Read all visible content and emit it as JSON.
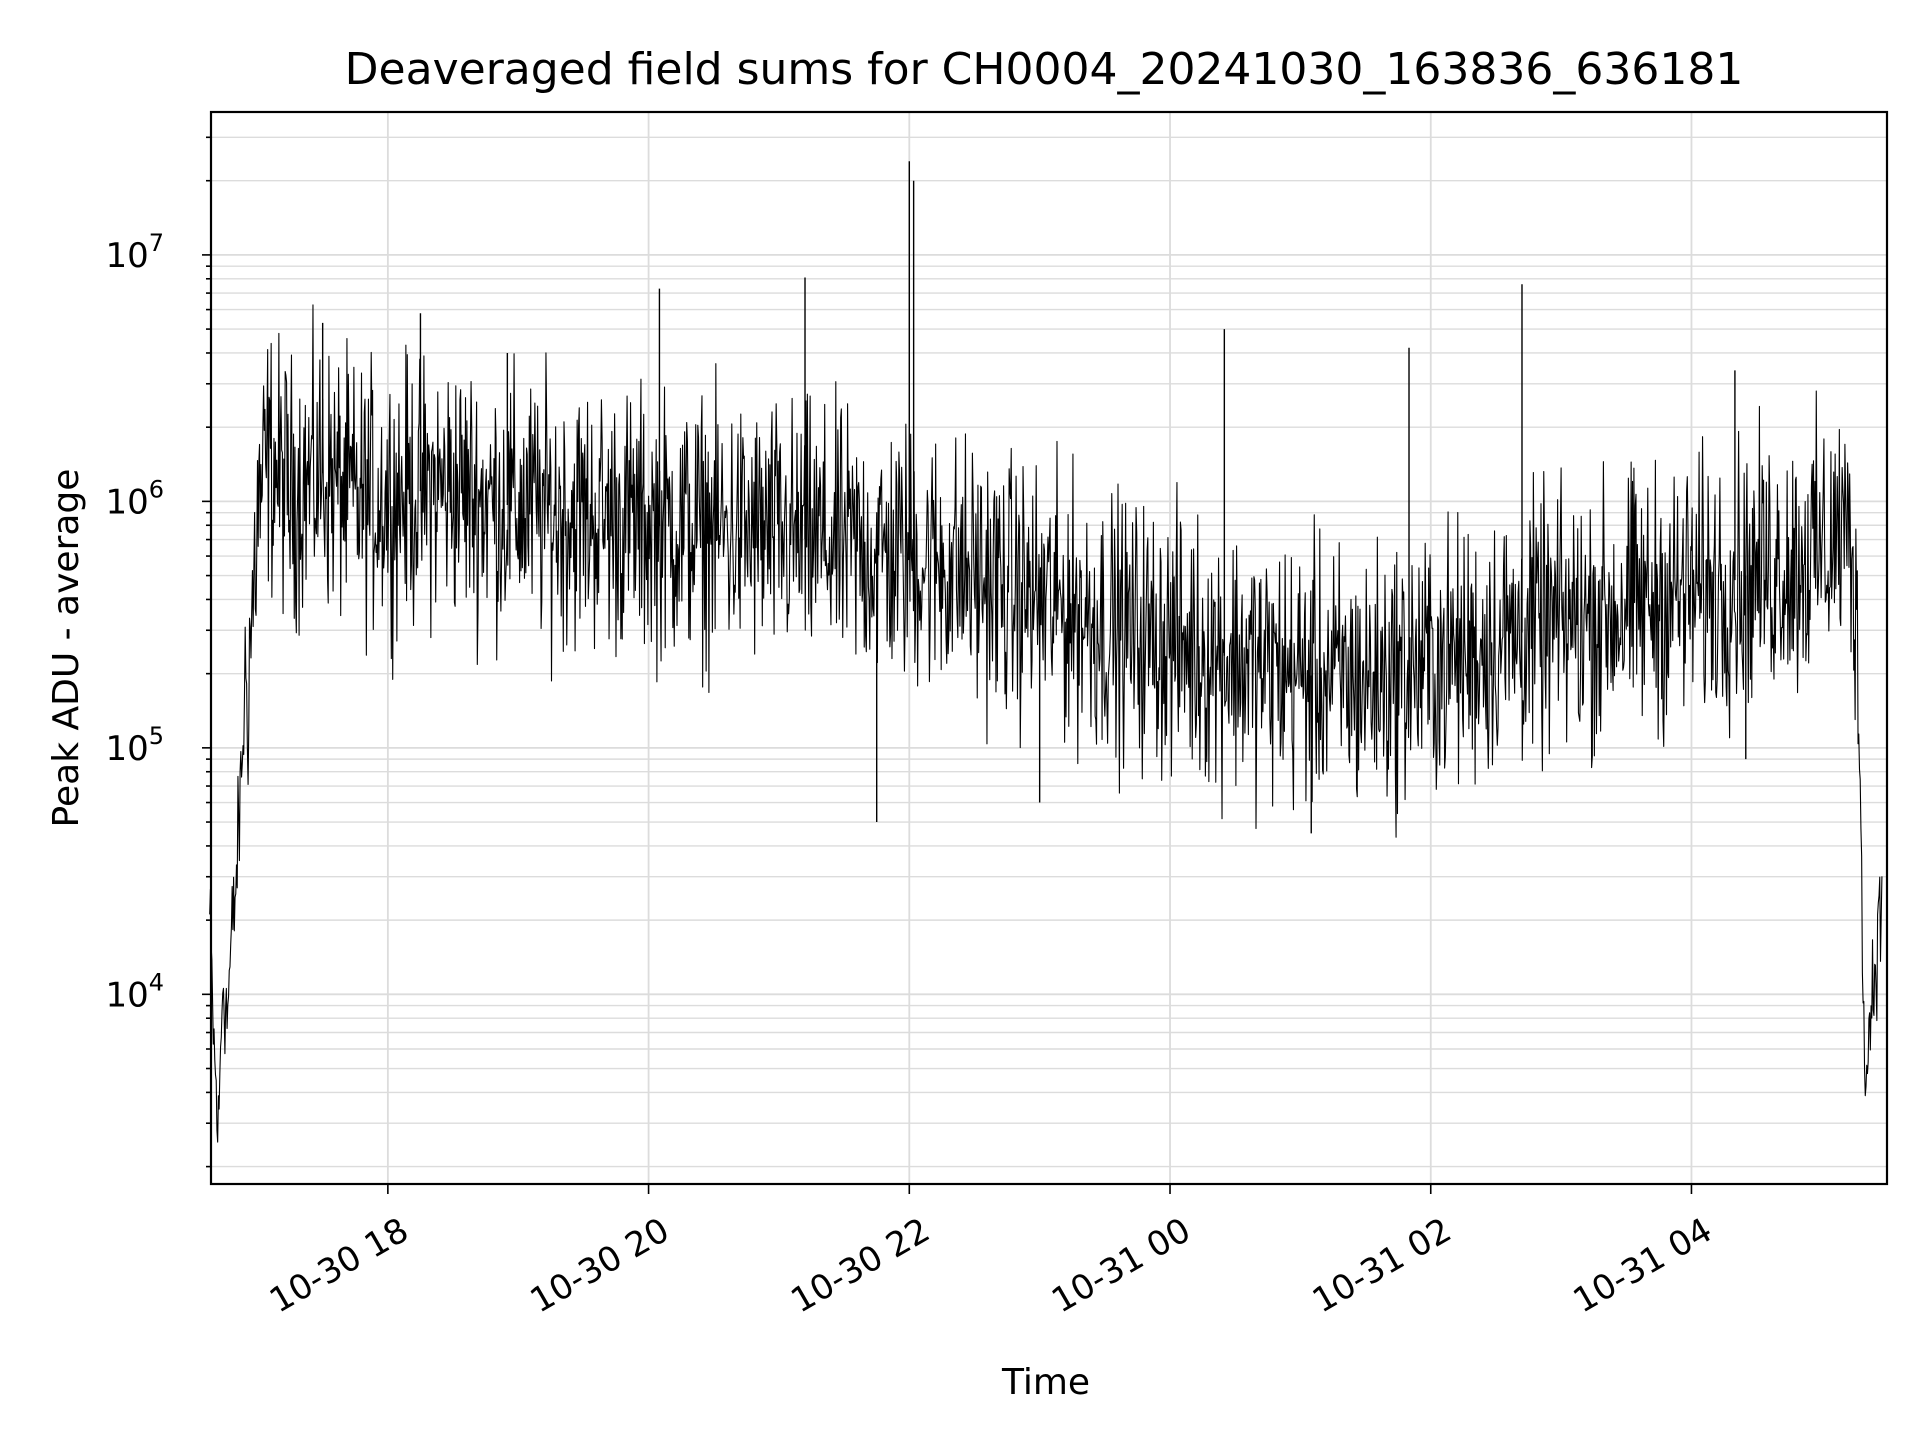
{
  "chart_data": {
    "type": "line",
    "title": "Deaveraged field sums for CH0004_20241030_163836_636181",
    "xlabel": "Time",
    "ylabel": "Peak ADU - average",
    "yscale": "log",
    "ylim": [
      1700,
      38000000
    ],
    "xlim": [
      "2024-10-30 16:38:36",
      "2024-10-31 05:30:00"
    ],
    "grid": true,
    "grid_minor_y": true,
    "legend": "none",
    "x_tick_labels": [
      "10-30 18",
      "10-30 20",
      "10-30 22",
      "10-31 00",
      "10-31 02",
      "10-31 04"
    ],
    "x_tick_values": [
      "2024-10-30 18:00",
      "2024-10-30 20:00",
      "2024-10-30 22:00",
      "2024-10-31 00:00",
      "2024-10-31 02:00",
      "2024-10-31 04:00"
    ],
    "y_tick_labels": [
      {
        "base": "10",
        "exp": "4",
        "value": 10000
      },
      {
        "base": "10",
        "exp": "5",
        "value": 100000
      },
      {
        "base": "10",
        "exp": "6",
        "value": 1000000
      },
      {
        "base": "10",
        "exp": "7",
        "value": 10000000
      }
    ],
    "series": [
      {
        "color": "#000000",
        "points": [
          [
            "2024-10-30 16:38",
            20000
          ],
          [
            "2024-10-30 16:40",
            6000
          ],
          [
            "2024-10-30 16:42",
            2600
          ],
          [
            "2024-10-30 16:44",
            12000
          ],
          [
            "2024-10-30 16:46",
            8000
          ],
          [
            "2024-10-30 16:48",
            16000
          ],
          [
            "2024-10-30 16:50",
            27000
          ],
          [
            "2024-10-30 16:52",
            60000
          ],
          [
            "2024-10-30 16:54",
            150000
          ],
          [
            "2024-10-30 16:56",
            220000
          ],
          [
            "2024-10-30 16:58",
            400000
          ],
          [
            "2024-10-30 17:00",
            900000
          ],
          [
            "2024-10-30 17:05",
            1500000
          ],
          [
            "2024-10-30 17:15",
            1100000
          ],
          [
            "2024-10-30 17:30",
            1300000
          ],
          [
            "2024-10-30 17:45",
            1000000
          ],
          [
            "2024-10-30 18:00",
            1050000
          ],
          [
            "2024-10-30 18:15",
            1100000
          ],
          [
            "2024-10-30 18:30",
            1150000
          ],
          [
            "2024-10-30 18:45",
            1000000
          ],
          [
            "2024-10-30 19:00",
            950000
          ],
          [
            "2024-10-30 19:15",
            900000
          ],
          [
            "2024-10-30 19:30",
            880000
          ],
          [
            "2024-10-30 19:45",
            850000
          ],
          [
            "2024-10-30 20:00",
            800000
          ],
          [
            "2024-10-30 20:15",
            780000
          ],
          [
            "2024-10-30 20:30",
            760000
          ],
          [
            "2024-10-30 20:45",
            740000
          ],
          [
            "2024-10-30 21:00",
            720000
          ],
          [
            "2024-10-30 21:15",
            700000
          ],
          [
            "2024-10-30 21:30",
            660000
          ],
          [
            "2024-10-30 21:45",
            620000
          ],
          [
            "2024-10-30 22:00",
            600000
          ],
          [
            "2024-10-30 22:15",
            560000
          ],
          [
            "2024-10-30 22:30",
            500000
          ],
          [
            "2024-10-30 22:45",
            440000
          ],
          [
            "2024-10-30 23:00",
            400000
          ],
          [
            "2024-10-30 23:15",
            360000
          ],
          [
            "2024-10-30 23:30",
            320000
          ],
          [
            "2024-10-30 23:45",
            290000
          ],
          [
            "2024-10-31 00:00",
            270000
          ],
          [
            "2024-10-31 00:15",
            250000
          ],
          [
            "2024-10-31 00:30",
            230000
          ],
          [
            "2024-10-31 00:45",
            210000
          ],
          [
            "2024-10-31 01:00",
            200000
          ],
          [
            "2024-10-31 01:15",
            190000
          ],
          [
            "2024-10-31 01:30",
            185000
          ],
          [
            "2024-10-31 01:45",
            200000
          ],
          [
            "2024-10-31 02:00",
            220000
          ],
          [
            "2024-10-31 02:15",
            240000
          ],
          [
            "2024-10-31 02:30",
            270000
          ],
          [
            "2024-10-31 02:45",
            300000
          ],
          [
            "2024-10-31 03:00",
            320000
          ],
          [
            "2024-10-31 03:15",
            340000
          ],
          [
            "2024-10-31 03:30",
            370000
          ],
          [
            "2024-10-31 03:45",
            400000
          ],
          [
            "2024-10-31 04:00",
            430000
          ],
          [
            "2024-10-31 04:15",
            460000
          ],
          [
            "2024-10-31 04:30",
            520000
          ],
          [
            "2024-10-31 04:45",
            560000
          ],
          [
            "2024-10-31 05:00",
            620000
          ],
          [
            "2024-10-31 05:10",
            800000
          ],
          [
            "2024-10-31 05:15",
            500000
          ],
          [
            "2024-10-31 05:18",
            60000
          ],
          [
            "2024-10-31 05:20",
            3500
          ],
          [
            "2024-10-31 05:22",
            8000
          ],
          [
            "2024-10-31 05:25",
            15000
          ],
          [
            "2024-10-31 05:28",
            25000
          ]
        ],
        "spikes": [
          [
            "2024-10-30 17:30",
            5300000
          ],
          [
            "2024-10-30 18:15",
            5800000
          ],
          [
            "2024-10-30 18:55",
            4000000
          ],
          [
            "2024-10-30 20:05",
            7300000
          ],
          [
            "2024-10-30 21:12",
            8100000
          ],
          [
            "2024-10-30 21:45",
            50000
          ],
          [
            "2024-10-30 22:00",
            24000000
          ],
          [
            "2024-10-30 22:02",
            20000000
          ],
          [
            "2024-10-30 23:00",
            60000
          ],
          [
            "2024-10-31 00:25",
            5000000
          ],
          [
            "2024-10-31 01:05",
            45000
          ],
          [
            "2024-10-31 01:50",
            4200000
          ],
          [
            "2024-10-31 02:42",
            7600000
          ],
          [
            "2024-10-31 04:20",
            3400000
          ],
          [
            "2024-10-31 04:25",
            90000
          ]
        ]
      }
    ]
  }
}
